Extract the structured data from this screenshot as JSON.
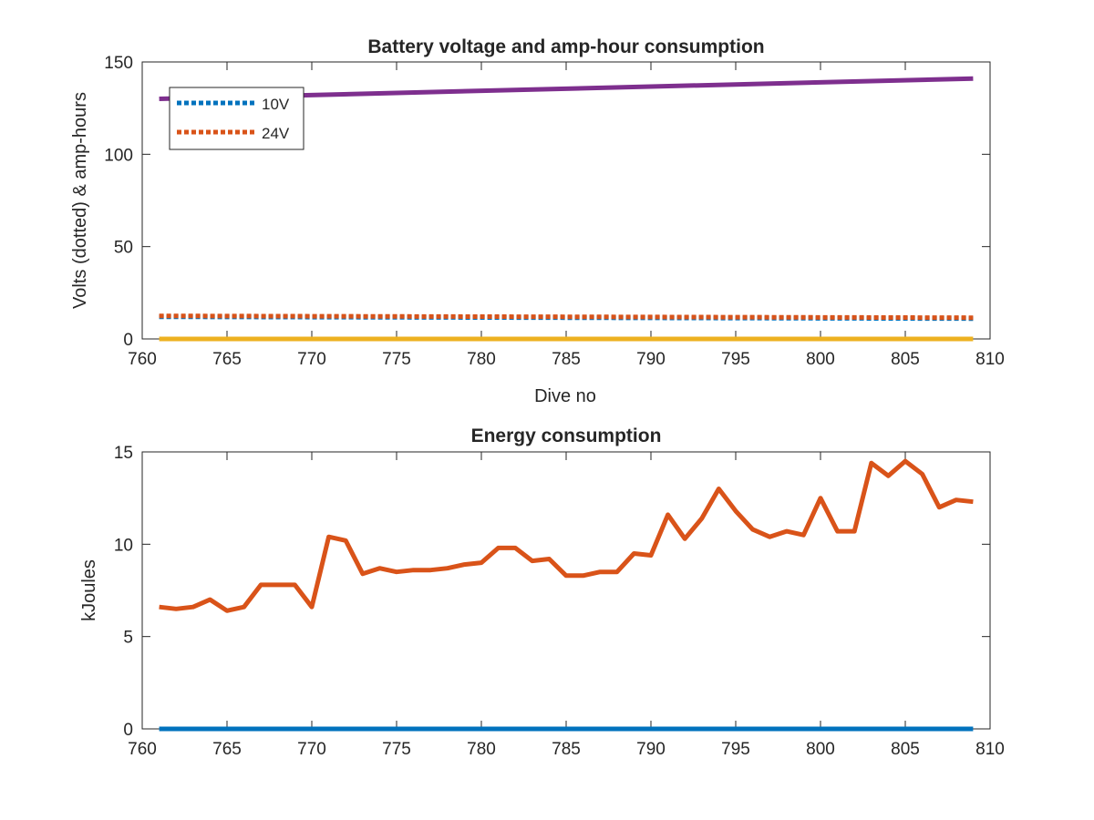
{
  "chart_data": [
    {
      "type": "line",
      "title": "Battery voltage and amp-hour consumption",
      "xlabel": "Dive no",
      "ylabel": "Volts (dotted) & amp-hours",
      "xlim": [
        760,
        810
      ],
      "ylim": [
        0,
        150
      ],
      "xticks": [
        "760",
        "765",
        "770",
        "775",
        "780",
        "785",
        "790",
        "795",
        "800",
        "805",
        "810"
      ],
      "yticks": [
        "0",
        "50",
        "100",
        "150"
      ],
      "grid": false,
      "legend_position": "top-left",
      "series": [
        {
          "name": "10V",
          "style": "dotted",
          "color": "#0072BD",
          "x": [
            761,
            809
          ],
          "y": [
            12,
            11
          ]
        },
        {
          "name": "24V",
          "style": "dotted",
          "color": "#D95319",
          "x": [
            761,
            809
          ],
          "y": [
            12.5,
            11.5
          ]
        },
        {
          "name": "",
          "style": "solid",
          "color": "#7E2F8E",
          "x": [
            761,
            809
          ],
          "y": [
            130,
            141
          ]
        },
        {
          "name": "",
          "style": "solid",
          "color": "#EDB120",
          "x": [
            761,
            809
          ],
          "y": [
            0,
            0
          ]
        }
      ]
    },
    {
      "type": "line",
      "title": "Energy consumption",
      "xlabel": "",
      "ylabel": "kJoules",
      "xlim": [
        760,
        810
      ],
      "ylim": [
        0,
        15
      ],
      "xticks": [
        "760",
        "765",
        "770",
        "775",
        "780",
        "785",
        "790",
        "795",
        "800",
        "805",
        "810"
      ],
      "yticks": [
        "0",
        "5",
        "10",
        "15"
      ],
      "grid": false,
      "series": [
        {
          "name": "",
          "style": "solid",
          "color": "#D95319",
          "x": [
            761,
            762,
            763,
            764,
            765,
            766,
            767,
            768,
            769,
            770,
            771,
            772,
            773,
            774,
            775,
            776,
            777,
            778,
            779,
            780,
            781,
            782,
            783,
            784,
            785,
            786,
            787,
            788,
            789,
            790,
            791,
            792,
            793,
            794,
            795,
            796,
            797,
            798,
            799,
            800,
            801,
            802,
            803,
            804,
            805,
            806,
            807,
            808,
            809
          ],
          "y": [
            6.6,
            6.5,
            6.6,
            7.0,
            6.4,
            6.6,
            7.8,
            7.8,
            7.8,
            6.6,
            10.4,
            10.2,
            8.4,
            8.7,
            8.5,
            8.6,
            8.6,
            8.7,
            8.9,
            9.0,
            9.8,
            9.8,
            9.1,
            9.2,
            8.3,
            8.3,
            8.5,
            8.5,
            9.5,
            9.4,
            11.6,
            10.3,
            11.4,
            13.0,
            11.8,
            10.8,
            10.4,
            10.7,
            10.5,
            12.5,
            10.7,
            10.7,
            14.4,
            13.7,
            14.5,
            13.8,
            12.0,
            12.4,
            12.3
          ]
        },
        {
          "name": "",
          "style": "solid",
          "color": "#0072BD",
          "x": [
            761,
            809
          ],
          "y": [
            0,
            0
          ]
        }
      ]
    }
  ]
}
